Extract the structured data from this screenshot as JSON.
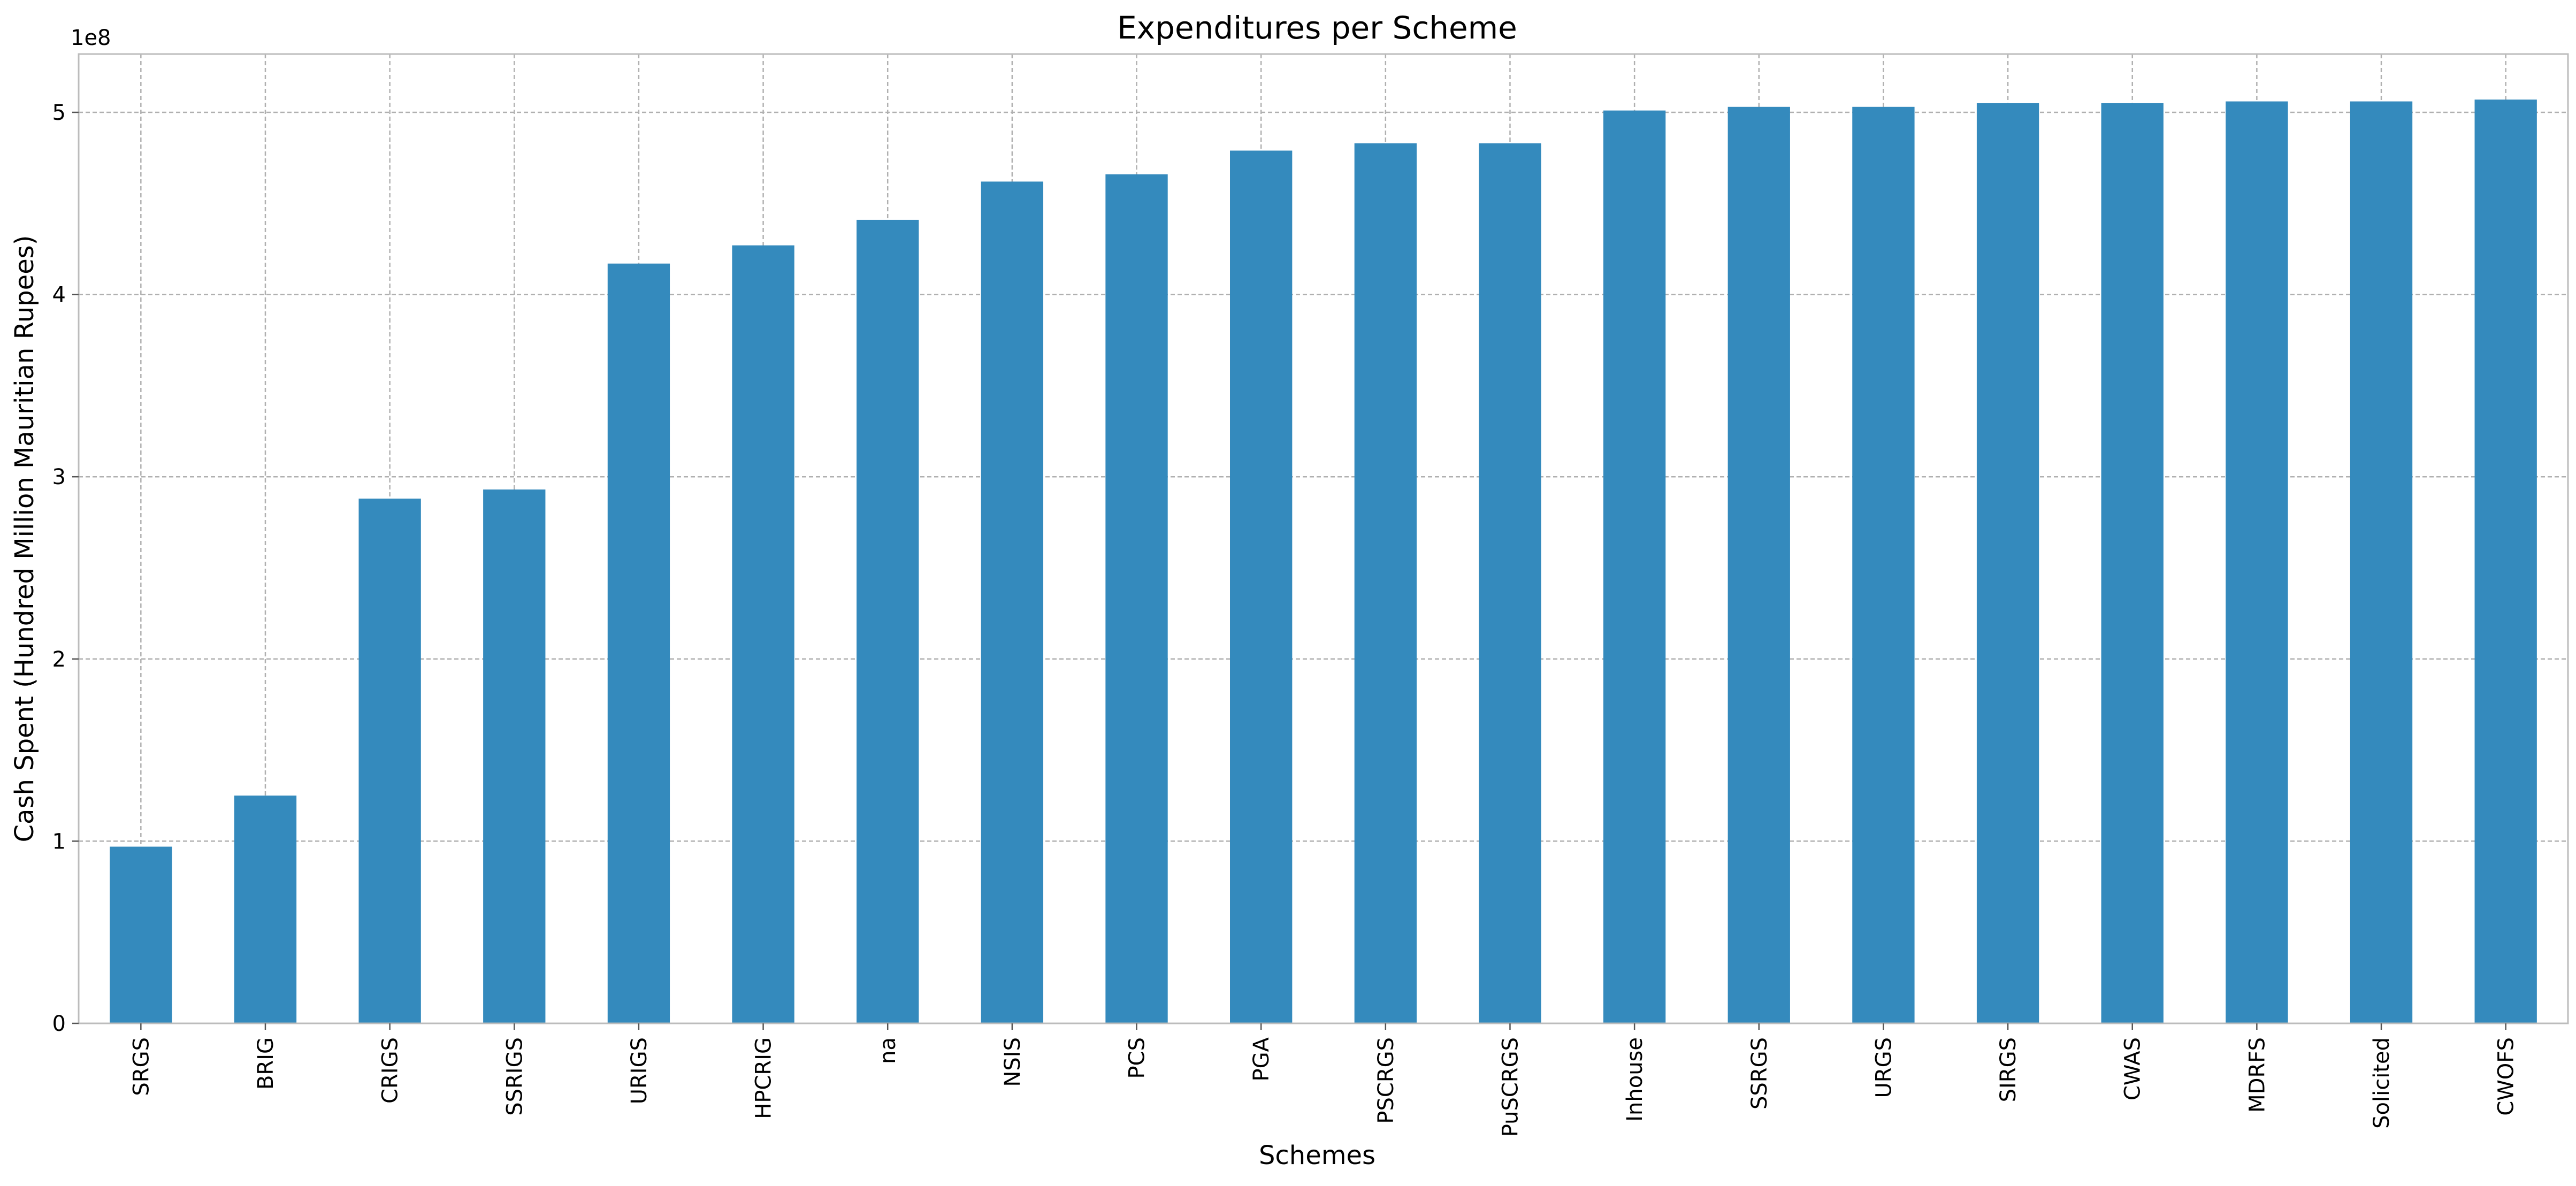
{
  "chart_data": {
    "type": "bar",
    "title": "Expenditures per Scheme",
    "xlabel": "Schemes",
    "ylabel": "Cash Spent (Hundred Million Mauritian Rupees)",
    "y_offset_label": "1e8",
    "y_scale": 100000000,
    "ylim": [
      0,
      532000000
    ],
    "y_ticks": [
      0,
      100000000,
      200000000,
      300000000,
      400000000,
      500000000
    ],
    "y_tick_labels": [
      "0",
      "1",
      "2",
      "3",
      "4",
      "5"
    ],
    "grid": true,
    "bar_color": "#348abd",
    "categories": [
      "SRGS",
      "BRIG",
      "CRIGS",
      "SSRIGS",
      "URIGS",
      "HPCRIG",
      "na",
      "NSIS",
      "PCS",
      "PGA",
      "PSCRGS",
      "PuSCRGS",
      "Inhouse",
      "SSRGS",
      "URGS",
      "SIRGS",
      "CWAS",
      "MDRFS",
      "Solicited",
      "CWOFS"
    ],
    "values": [
      97000000,
      125000000,
      288000000,
      293000000,
      417000000,
      427000000,
      441000000,
      462000000,
      466000000,
      479000000,
      483000000,
      483000000,
      501000000,
      503000000,
      503000000,
      505000000,
      505000000,
      506000000,
      506000000,
      507000000
    ]
  }
}
